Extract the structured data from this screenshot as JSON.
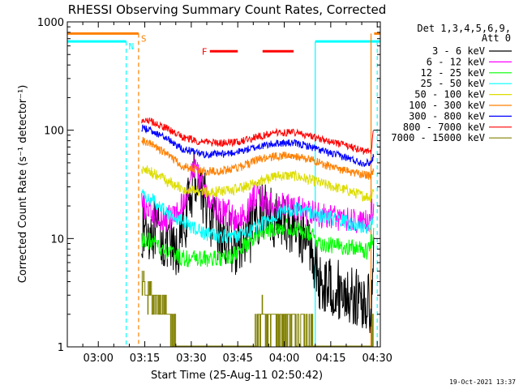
{
  "chart_data": {
    "type": "line",
    "title": "RHESSI Observing Summary Count Rates, Corrected",
    "xlabel": "Start Time (25-Aug-11 02:50:42)",
    "ylabel": "Corrected Count Rate (s⁻¹ detector⁻¹)",
    "x_range": [
      "02:50",
      "04:31"
    ],
    "y_scale": "log",
    "ylim": [
      1,
      1000
    ],
    "x_ticks": [
      "03:00",
      "03:15",
      "03:30",
      "03:45",
      "04:00",
      "04:15",
      "04:30"
    ],
    "y_ticks": [
      "1",
      "10",
      "100",
      "1000"
    ],
    "legend_header": [
      "Det 1,3,4,5,6,9,",
      "Att 0"
    ],
    "legend_position": "right",
    "footer": "19-Oct-2021 13:37",
    "annotations": [
      {
        "label": "S",
        "color": "#ff8000",
        "start": "02:50",
        "end": "03:13",
        "y": 780,
        "note": "SAA flag"
      },
      {
        "label": "N",
        "color": "#00ffff",
        "start": "02:50",
        "end": "03:09",
        "y": 660,
        "note": "night flag"
      },
      {
        "label": "",
        "color": "#00ffff",
        "start": "04:10",
        "end": "04:31",
        "y": 660,
        "note": "night flag"
      },
      {
        "label": "",
        "color": "#ff8000",
        "start": "04:29",
        "end": "04:31",
        "y": 780,
        "note": "SAA flag"
      },
      {
        "label": "F",
        "color": "#ff0000",
        "segments": [
          [
            "03:36",
            "03:45"
          ],
          [
            "03:53",
            "04:03"
          ]
        ],
        "y": 535,
        "note": "flare flag"
      }
    ],
    "vertical_lines": [
      {
        "time": "03:09",
        "color": "#00ffff"
      },
      {
        "time": "03:13",
        "color": "#ff8000"
      },
      {
        "time": "04:10",
        "color": "#00ffff"
      },
      {
        "time": "04:28",
        "color": "#ff8000"
      },
      {
        "time": "04:30",
        "color": "#00ffff"
      }
    ],
    "data_start": "03:14",
    "data_end": "04:29",
    "series": [
      {
        "name": "3 - 6 keV",
        "color": "#000000",
        "noise": 0.28,
        "points": [
          [
            "03:14",
            12
          ],
          [
            "03:18",
            12
          ],
          [
            "03:22",
            9
          ],
          [
            "03:25",
            7
          ],
          [
            "03:28",
            14
          ],
          [
            "03:31",
            38
          ],
          [
            "03:33",
            32
          ],
          [
            "03:36",
            15
          ],
          [
            "03:39",
            11
          ],
          [
            "03:42",
            10
          ],
          [
            "03:45",
            8
          ],
          [
            "03:48",
            9
          ],
          [
            "03:51",
            16
          ],
          [
            "03:54",
            19
          ],
          [
            "03:57",
            15
          ],
          [
            "04:00",
            14
          ],
          [
            "04:03",
            13
          ],
          [
            "04:06",
            11
          ],
          [
            "04:09",
            8
          ],
          [
            "04:11",
            4
          ],
          [
            "04:16",
            3.5
          ],
          [
            "04:21",
            3
          ],
          [
            "04:26",
            2.5
          ],
          [
            "04:28",
            2.5
          ],
          [
            "04:29",
            8
          ]
        ]
      },
      {
        "name": "6 - 12 keV",
        "color": "#ff00ff",
        "noise": 0.13,
        "points": [
          [
            "03:14",
            20
          ],
          [
            "03:18",
            17
          ],
          [
            "03:22",
            15
          ],
          [
            "03:26",
            17
          ],
          [
            "03:29",
            28
          ],
          [
            "03:31",
            50
          ],
          [
            "03:33",
            35
          ],
          [
            "03:36",
            21
          ],
          [
            "03:39",
            18
          ],
          [
            "03:42",
            17
          ],
          [
            "03:45",
            14
          ],
          [
            "03:48",
            18
          ],
          [
            "03:51",
            27
          ],
          [
            "03:54",
            21
          ],
          [
            "03:57",
            19
          ],
          [
            "04:00",
            20
          ],
          [
            "04:04",
            19
          ],
          [
            "04:08",
            17
          ],
          [
            "04:12",
            16
          ],
          [
            "04:16",
            16
          ],
          [
            "04:20",
            15
          ],
          [
            "04:24",
            14
          ],
          [
            "04:27",
            14
          ],
          [
            "04:29",
            20
          ]
        ]
      },
      {
        "name": "12 - 25 keV",
        "color": "#00ff00",
        "noise": 0.08,
        "points": [
          [
            "03:14",
            10
          ],
          [
            "03:18",
            9
          ],
          [
            "03:22",
            7.5
          ],
          [
            "03:28",
            6.5
          ],
          [
            "03:35",
            6.5
          ],
          [
            "03:40",
            6.5
          ],
          [
            "03:44",
            7
          ],
          [
            "03:48",
            9
          ],
          [
            "03:52",
            11
          ],
          [
            "03:56",
            12.5
          ],
          [
            "04:00",
            13
          ],
          [
            "04:04",
            12
          ],
          [
            "04:08",
            11
          ],
          [
            "04:12",
            9
          ],
          [
            "04:16",
            8.5
          ],
          [
            "04:20",
            8.5
          ],
          [
            "04:24",
            8
          ],
          [
            "04:27",
            7.5
          ],
          [
            "04:29",
            12
          ]
        ]
      },
      {
        "name": "25 - 50 keV",
        "color": "#00ffff",
        "noise": 0.07,
        "points": [
          [
            "03:14",
            26
          ],
          [
            "03:18",
            22
          ],
          [
            "03:22",
            18
          ],
          [
            "03:26",
            15
          ],
          [
            "03:30",
            13
          ],
          [
            "03:35",
            11
          ],
          [
            "03:40",
            10.5
          ],
          [
            "03:45",
            10.5
          ],
          [
            "03:50",
            12
          ],
          [
            "03:55",
            15
          ],
          [
            "04:00",
            18
          ],
          [
            "04:04",
            19
          ],
          [
            "04:08",
            18
          ],
          [
            "04:12",
            16
          ],
          [
            "04:16",
            15
          ],
          [
            "04:20",
            14
          ],
          [
            "04:24",
            13
          ],
          [
            "04:27",
            12
          ],
          [
            "04:29",
            18
          ]
        ]
      },
      {
        "name": "50 - 100 keV",
        "color": "#dddd00",
        "noise": 0.05,
        "points": [
          [
            "03:14",
            44
          ],
          [
            "03:18",
            40
          ],
          [
            "03:22",
            34
          ],
          [
            "03:27",
            29
          ],
          [
            "03:33",
            27
          ],
          [
            "03:40",
            27
          ],
          [
            "03:46",
            29
          ],
          [
            "03:52",
            34
          ],
          [
            "03:58",
            38
          ],
          [
            "04:03",
            38
          ],
          [
            "04:08",
            35
          ],
          [
            "04:14",
            31
          ],
          [
            "04:20",
            28
          ],
          [
            "04:25",
            25
          ],
          [
            "04:28",
            24
          ],
          [
            "04:29",
            30
          ]
        ]
      },
      {
        "name": "100 - 300 keV",
        "color": "#ff8000",
        "noise": 0.04,
        "points": [
          [
            "03:14",
            80
          ],
          [
            "03:18",
            72
          ],
          [
            "03:22",
            60
          ],
          [
            "03:27",
            47
          ],
          [
            "03:33",
            42
          ],
          [
            "03:40",
            42
          ],
          [
            "03:46",
            46
          ],
          [
            "03:52",
            54
          ],
          [
            "03:58",
            58
          ],
          [
            "04:03",
            58
          ],
          [
            "04:08",
            54
          ],
          [
            "04:14",
            47
          ],
          [
            "04:20",
            42
          ],
          [
            "04:25",
            39
          ],
          [
            "04:28",
            38
          ],
          [
            "04:29",
            45
          ]
        ]
      },
      {
        "name": "300 - 800 keV",
        "color": "#0000ff",
        "noise": 0.035,
        "points": [
          [
            "03:14",
            105
          ],
          [
            "03:18",
            97
          ],
          [
            "03:22",
            84
          ],
          [
            "03:27",
            68
          ],
          [
            "03:33",
            60
          ],
          [
            "03:40",
            60
          ],
          [
            "03:46",
            64
          ],
          [
            "03:52",
            71
          ],
          [
            "03:58",
            76
          ],
          [
            "04:03",
            76
          ],
          [
            "04:08",
            71
          ],
          [
            "04:14",
            62
          ],
          [
            "04:20",
            56
          ],
          [
            "04:25",
            50
          ],
          [
            "04:28",
            50
          ],
          [
            "04:29",
            60
          ]
        ]
      },
      {
        "name": "800 - 7000 keV",
        "color": "#ff0000",
        "noise": 0.035,
        "points": [
          [
            "03:14",
            125
          ],
          [
            "03:18",
            118
          ],
          [
            "03:22",
            104
          ],
          [
            "03:27",
            86
          ],
          [
            "03:33",
            78
          ],
          [
            "03:40",
            76
          ],
          [
            "03:46",
            79
          ],
          [
            "03:52",
            88
          ],
          [
            "03:58",
            95
          ],
          [
            "04:03",
            95
          ],
          [
            "04:08",
            88
          ],
          [
            "04:14",
            79
          ],
          [
            "04:20",
            72
          ],
          [
            "04:25",
            65
          ],
          [
            "04:28",
            63
          ],
          [
            "04:29",
            110
          ]
        ]
      },
      {
        "name": "7000 - 15000 keV",
        "color": "#808000",
        "noise": 0,
        "points": [
          [
            "03:14",
            4
          ],
          [
            "03:18",
            3
          ],
          [
            "03:22",
            2
          ],
          [
            "03:24",
            1.5
          ],
          [
            "03:27",
            1
          ],
          [
            "03:50",
            1
          ],
          [
            "03:52",
            2
          ],
          [
            "04:00",
            1.5
          ],
          [
            "04:05",
            2
          ],
          [
            "04:08",
            1.5
          ],
          [
            "04:12",
            1
          ],
          [
            "04:28",
            1
          ],
          [
            "04:29",
            2
          ]
        ]
      }
    ]
  }
}
